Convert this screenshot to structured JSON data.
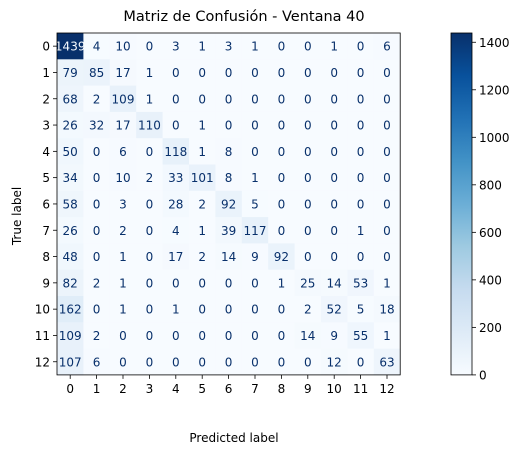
{
  "chart_data": {
    "type": "heatmap",
    "title": "Matriz de Confusión - Ventana 40",
    "xlabel": "Predicted label",
    "ylabel": "True label",
    "x_categories": [
      "0",
      "1",
      "2",
      "3",
      "4",
      "5",
      "6",
      "7",
      "8",
      "9",
      "10",
      "11",
      "12"
    ],
    "y_categories": [
      "0",
      "1",
      "2",
      "3",
      "4",
      "5",
      "6",
      "7",
      "8",
      "9",
      "10",
      "11",
      "12"
    ],
    "matrix": [
      [
        1439,
        4,
        10,
        0,
        3,
        1,
        3,
        1,
        0,
        0,
        1,
        0,
        6
      ],
      [
        79,
        85,
        17,
        1,
        0,
        0,
        0,
        0,
        0,
        0,
        0,
        0,
        0
      ],
      [
        68,
        2,
        109,
        1,
        0,
        0,
        0,
        0,
        0,
        0,
        0,
        0,
        0
      ],
      [
        26,
        32,
        17,
        110,
        0,
        1,
        0,
        0,
        0,
        0,
        0,
        0,
        0
      ],
      [
        50,
        0,
        6,
        0,
        118,
        1,
        8,
        0,
        0,
        0,
        0,
        0,
        0
      ],
      [
        34,
        0,
        10,
        2,
        33,
        101,
        8,
        1,
        0,
        0,
        0,
        0,
        0
      ],
      [
        58,
        0,
        3,
        0,
        28,
        2,
        92,
        5,
        0,
        0,
        0,
        0,
        0
      ],
      [
        26,
        0,
        2,
        0,
        4,
        1,
        39,
        117,
        0,
        0,
        0,
        1,
        0
      ],
      [
        48,
        0,
        1,
        0,
        17,
        2,
        14,
        9,
        92,
        0,
        0,
        0,
        0
      ],
      [
        82,
        2,
        1,
        0,
        0,
        0,
        0,
        0,
        1,
        25,
        14,
        53,
        1
      ],
      [
        162,
        0,
        1,
        0,
        1,
        0,
        0,
        0,
        0,
        2,
        52,
        5,
        18
      ],
      [
        109,
        2,
        0,
        0,
        0,
        0,
        0,
        0,
        0,
        14,
        9,
        55,
        1
      ],
      [
        107,
        6,
        0,
        0,
        0,
        0,
        0,
        0,
        0,
        0,
        12,
        0,
        63
      ]
    ],
    "colormap": "Blues",
    "value_range": [
      0,
      1439
    ],
    "colorbar_ticks": [
      0,
      200,
      400,
      600,
      800,
      1000,
      1200,
      1400
    ],
    "grid": false
  }
}
